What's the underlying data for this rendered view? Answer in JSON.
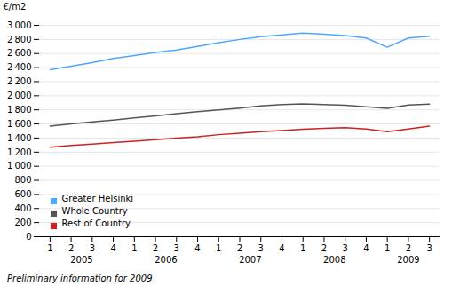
{
  "chart_data": {
    "type": "line",
    "y_label": "€/m2",
    "caption": "Preliminary information for 2009",
    "categories": [
      "1",
      "2",
      "3",
      "4",
      "1",
      "2",
      "3",
      "4",
      "1",
      "2",
      "3",
      "4",
      "1",
      "2",
      "3",
      "4",
      "1",
      "2",
      "3"
    ],
    "series": [
      {
        "name": "Greater Helsinki",
        "color": "#4da6ff",
        "values": [
          2370,
          2420,
          2470,
          2530,
          2570,
          2615,
          2650,
          2700,
          2755,
          2800,
          2840,
          2865,
          2890,
          2875,
          2855,
          2820,
          2690,
          2820,
          2845
        ]
      },
      {
        "name": "Whole Country",
        "color": "#555555",
        "values": [
          1570,
          1600,
          1630,
          1655,
          1685,
          1715,
          1745,
          1775,
          1800,
          1825,
          1855,
          1875,
          1885,
          1875,
          1865,
          1845,
          1820,
          1870,
          1880
        ]
      },
      {
        "name": "Rest of Country",
        "color": "#cc2222",
        "values": [
          1270,
          1295,
          1315,
          1335,
          1355,
          1378,
          1398,
          1418,
          1448,
          1468,
          1490,
          1505,
          1525,
          1538,
          1548,
          1528,
          1490,
          1528,
          1568
        ]
      }
    ],
    "annotations": [
      {
        "text": "2005",
        "x": 2.5
      },
      {
        "text": "2006",
        "x": 6.5
      },
      {
        "text": "2007",
        "x": 10.5
      },
      {
        "text": "2008",
        "x": 14.5
      },
      {
        "text": "2009",
        "x": 18.0
      }
    ],
    "ylim": [
      0,
      3000
    ],
    "yticks": [
      0,
      200,
      400,
      600,
      800,
      {
        "value": 1000,
        "label": "1 000"
      },
      {
        "value": 1200,
        "label": "1 200"
      },
      {
        "value": 1400,
        "label": "1 400"
      },
      {
        "value": 1600,
        "label": "1 600"
      },
      {
        "value": 1800,
        "label": "1 800"
      },
      {
        "value": 2000,
        "label": "2 000"
      },
      {
        "value": 2200,
        "label": "2 200"
      },
      {
        "value": 2400,
        "label": "2 400"
      },
      {
        "value": 2600,
        "label": "2 600"
      },
      {
        "value": 2800,
        "label": "2 800"
      },
      {
        "value": 3000,
        "label": "3 000"
      }
    ],
    "grid": true,
    "legend": "lower left"
  }
}
